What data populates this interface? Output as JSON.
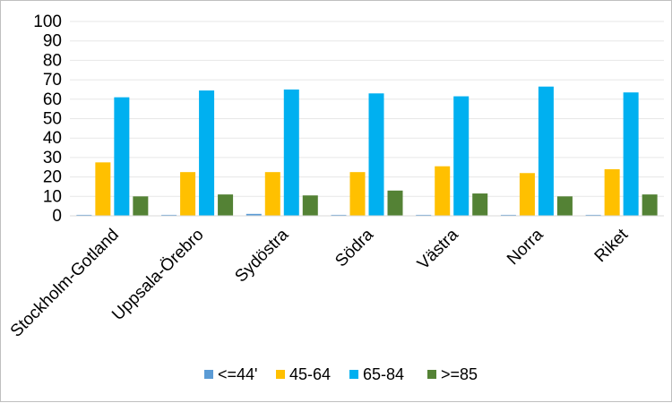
{
  "chart_data": {
    "type": "bar",
    "categories": [
      "Stockholm-Gotland",
      "Uppsala-Örebro",
      "Sydöstra",
      "Södra",
      "Västra",
      "Norra",
      "Riket"
    ],
    "series": [
      {
        "name": "<=44'",
        "color": "#5b9bd5",
        "values": [
          0.5,
          0.5,
          1,
          0.5,
          0.5,
          0.5,
          0.5
        ]
      },
      {
        "name": "45-64",
        "color": "#ffc000",
        "values": [
          27.5,
          22.5,
          22.5,
          22.5,
          25.5,
          22,
          24
        ]
      },
      {
        "name": "65-84",
        "color": "#00b0f0",
        "values": [
          61,
          64.5,
          65,
          63,
          61.5,
          66.5,
          63.5
        ]
      },
      {
        "name": ">=85",
        "color": "#548235",
        "values": [
          10,
          11,
          10.5,
          13,
          11.5,
          10,
          11
        ]
      }
    ],
    "yticks": [
      0,
      10,
      20,
      30,
      40,
      50,
      60,
      70,
      80,
      90,
      100
    ],
    "ylim": [
      0,
      100
    ],
    "grid": true,
    "legend": "bottom"
  }
}
